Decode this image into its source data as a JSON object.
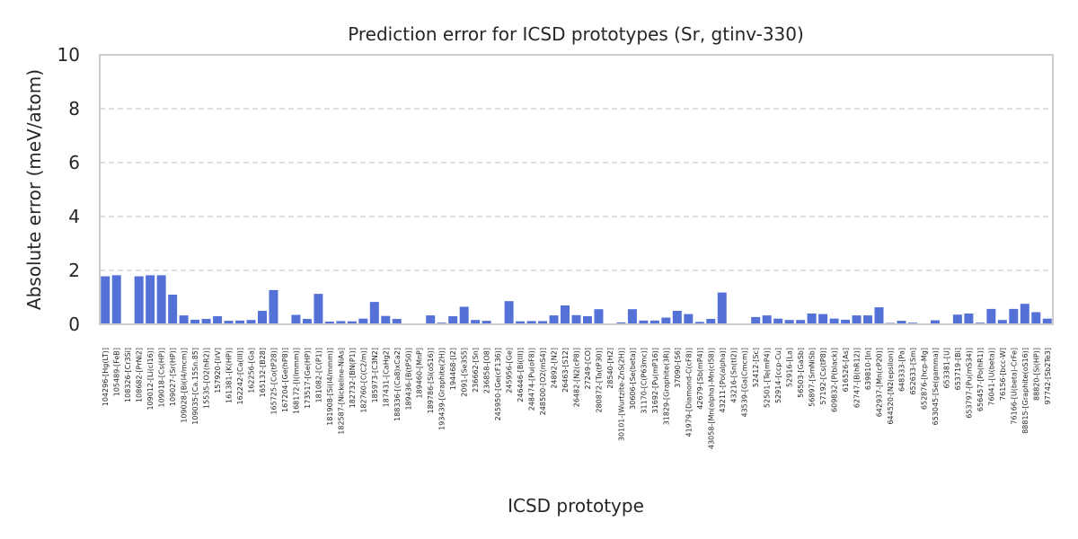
{
  "chart_data": {
    "type": "bar",
    "title": "Prediction error for ICSD prototypes (Sr, gtinv-330)",
    "xlabel": "ICSD prototype",
    "ylabel": "Absolute error (meV/atom)",
    "ylim": [
      0,
      10
    ],
    "yticks": [
      0,
      2,
      4,
      6,
      8,
      10
    ],
    "grid": "horizontal dashed",
    "color": "#5471d8",
    "categories": [
      "104296-[Hg(LT)]",
      "105489-[FeB]",
      "108326-[Cr3Si]",
      "108682-[PrNi2]",
      "109012-[Li(cI16)]",
      "109018-[Cs(HP)]",
      "109027-[Sr(HP)]",
      "109028-[Bi(I4/mcm)]",
      "109035-[Ca.15Sn.85]",
      "15535-[O2(hR2)]",
      "157920-[IrV]",
      "161381-[K(HP)]",
      "162242-[Ca(III)]",
      "162256-[Ga]",
      "165132-[B28]",
      "165725-[Co(tP28)]",
      "167204-[Ge(hP8)]",
      "168172-[I(Immm)]",
      "173517-[Ge(HP)]",
      "181082-[C(P1)]",
      "181908-[Si(I4/mmm)]",
      "182587-[Nickeline-NiAs]",
      "182732-[BN(P1)]",
      "182760-[C(C2/m)]",
      "185973-[C3N2]",
      "187431-[CaHg2]",
      "188336-[(Ca8)xCa2]",
      "189436-[B(tP50)]",
      "189460-[MnP]",
      "189786-[Si(oS16)]",
      "193439-[Graphite(2H)]",
      "194468-[I2]",
      "2091-[Se3S5]",
      "236662-[Sn]",
      "236858-[O8]",
      "245950-[Ge(cF136)]",
      "245956-[Ge]",
      "246446-[Bi(III)]",
      "248474-[Pu(oF8)]",
      "248500-[O2(mS4)]",
      "24892-[N2]",
      "26463-[S12]",
      "26482-[N2(cP8)]",
      "27249-[CO]",
      "280872-[Ta(tP30)]",
      "28540-[H2]",
      "30101-[Wurtzite-ZnS(2H)]",
      "30606-[Se(beta)]",
      "31170-[C(P63mc)]",
      "31692-[Pu(mP16)]",
      "31829-[Graphite(3R)]",
      "37090-[S6]",
      "41979-[Diamond-C(cF8)]",
      "42679-[Sb(mP4)]",
      "43058-[Mn(alpha)-Mn(cI58)]",
      "43211-[Po(alpha)]",
      "43216-[Sn(tI2)]",
      "43539-[Ga(Cmcm)]",
      "52412-[Sc]",
      "52501-[Te(mP4)]",
      "52914-[ccp-Cu]",
      "52916-[La]",
      "56503-[GaSb]",
      "56897-[SmNiSb]",
      "57192-[Cs(tP8)]",
      "609832-[P(black)]",
      "616526-[As]",
      "62747-[B(hR12)]",
      "639810-[In]",
      "642937-[Mn(cP20)]",
      "644520-[N2(epsilon)]",
      "648333-[Pa]",
      "652633-[Sm]",
      "652876-[hcp-Mg]",
      "653045-[Se(gamma)]",
      "653381-[U]",
      "653719-[Bi]",
      "653797-[Pu(mS34)]",
      "656457-[Po(hR1)]",
      "76041-[U(beta)]",
      "76156-[bcc-W]",
      "76166-[U(beta)-CrFe]",
      "88815-[Graphite(oS16)]",
      "88820-[Si(HP)]",
      "97742-[Sb2Te3]"
    ],
    "values": [
      1.78,
      1.82,
      0.0,
      1.78,
      1.82,
      1.82,
      1.1,
      0.33,
      0.17,
      0.2,
      0.3,
      0.13,
      0.14,
      0.16,
      0.5,
      1.27,
      0.0,
      0.35,
      0.2,
      1.13,
      0.1,
      0.12,
      0.11,
      0.21,
      0.83,
      0.31,
      0.2,
      0.0,
      0.0,
      0.33,
      0.06,
      0.3,
      0.65,
      0.16,
      0.13,
      0.0,
      0.86,
      0.11,
      0.12,
      0.12,
      0.33,
      0.7,
      0.34,
      0.3,
      0.56,
      0.02,
      0.07,
      0.56,
      0.14,
      0.14,
      0.25,
      0.5,
      0.38,
      0.09,
      0.2,
      1.18,
      0.0,
      0.0,
      0.27,
      0.33,
      0.21,
      0.16,
      0.16,
      0.4,
      0.38,
      0.21,
      0.17,
      0.33,
      0.33,
      0.63,
      0.05,
      0.13,
      0.06,
      0.0,
      0.15,
      0.0,
      0.36,
      0.4,
      0.06,
      0.57,
      0.16,
      0.57,
      0.76,
      0.45,
      0.21
    ]
  }
}
